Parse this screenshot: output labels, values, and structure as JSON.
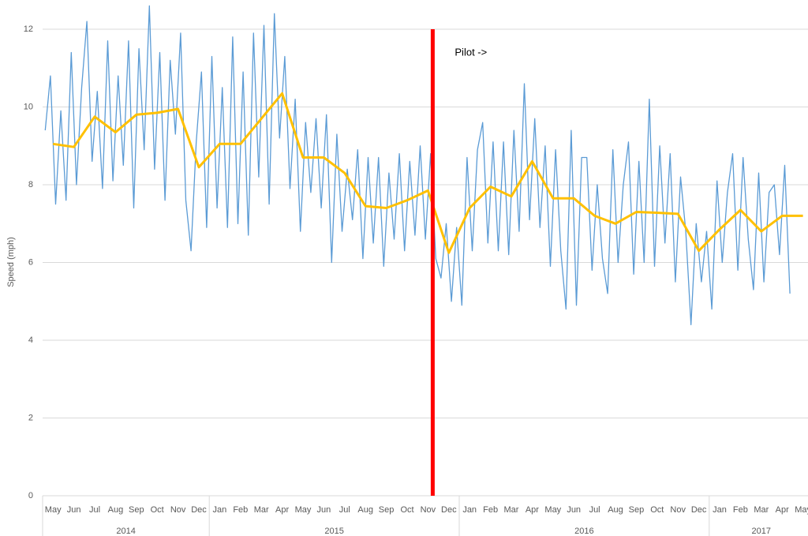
{
  "chart_data": {
    "type": "line",
    "y_label": "Speed (mph)",
    "ylim": [
      0,
      12
    ],
    "yticks": [
      0,
      2,
      4,
      6,
      8,
      10,
      12
    ],
    "grid": true,
    "years": [
      {
        "label": "2014",
        "months": [
          "May",
          "Jun",
          "Jul",
          "Aug",
          "Sep",
          "Oct",
          "Nov",
          "Dec"
        ]
      },
      {
        "label": "2015",
        "months": [
          "Jan",
          "Feb",
          "Mar",
          "Apr",
          "May",
          "Jun",
          "Jul",
          "Aug",
          "Sep",
          "Oct",
          "Nov",
          "Dec"
        ]
      },
      {
        "label": "2016",
        "months": [
          "Jan",
          "Feb",
          "Mar",
          "Apr",
          "May",
          "Jun",
          "Jul",
          "Aug",
          "Sep",
          "Oct",
          "Nov",
          "Dec"
        ]
      },
      {
        "label": "2017",
        "months": [
          "Jan",
          "Feb",
          "Mar",
          "Apr",
          "May"
        ]
      }
    ],
    "series": [
      {
        "color": "#5b9bd5",
        "values_by_month": [
          [
            9.4,
            10.8,
            7.5,
            9.9
          ],
          [
            7.6,
            11.4,
            8.0,
            10.5
          ],
          [
            12.2,
            8.6,
            10.4,
            7.9
          ],
          [
            11.7,
            8.1,
            10.8,
            8.5
          ],
          [
            11.7,
            7.4,
            11.5,
            8.9
          ],
          [
            12.6,
            8.4,
            11.4,
            7.6
          ],
          [
            11.2,
            9.3,
            11.9,
            7.6
          ],
          [
            6.3,
            9.1,
            10.9,
            6.9
          ],
          [
            11.3,
            7.4,
            10.5,
            6.9
          ],
          [
            11.8,
            7.0,
            10.9,
            6.7
          ],
          [
            11.9,
            8.2,
            12.1,
            7.5
          ],
          [
            12.4,
            9.2,
            11.3,
            7.9
          ],
          [
            10.2,
            6.8,
            9.6,
            7.8
          ],
          [
            9.7,
            7.4,
            9.8,
            6.0
          ],
          [
            9.3,
            6.8,
            8.4,
            7.1
          ],
          [
            8.9,
            6.1,
            8.7,
            6.5
          ],
          [
            8.7,
            5.9,
            8.3,
            6.6
          ],
          [
            8.8,
            6.3,
            8.6,
            6.7
          ],
          [
            9.0,
            6.6,
            8.8,
            6.1
          ],
          [
            5.6,
            7.0,
            5.0,
            6.9
          ],
          [
            4.9,
            8.7,
            6.3,
            8.9
          ],
          [
            9.6,
            6.5,
            9.1,
            6.3
          ],
          [
            9.1,
            6.2,
            9.4,
            6.8
          ],
          [
            10.6,
            7.1,
            9.7,
            6.9
          ],
          [
            9.0,
            5.9,
            8.9,
            6.3
          ],
          [
            4.8,
            9.4,
            4.9,
            8.7
          ],
          [
            8.7,
            5.8,
            8.0,
            6.1
          ],
          [
            5.2,
            8.9,
            6.0,
            8.0
          ],
          [
            9.1,
            5.7,
            8.6,
            6.0
          ],
          [
            10.2,
            5.9,
            9.0,
            6.5
          ],
          [
            8.8,
            5.5,
            8.2,
            6.8
          ],
          [
            4.4,
            7.0,
            5.5,
            6.8
          ],
          [
            4.8,
            8.1,
            6.0,
            7.8
          ],
          [
            8.8,
            5.8,
            8.7,
            6.6
          ],
          [
            5.3,
            8.3,
            5.5,
            7.8
          ],
          [
            8.0,
            6.2,
            8.5,
            5.2
          ],
          []
        ]
      },
      {
        "color": "#ffc000",
        "values": [
          9.05,
          8.97,
          9.75,
          9.35,
          9.8,
          9.85,
          9.95,
          8.45,
          9.05,
          9.05,
          9.7,
          10.35,
          8.7,
          8.7,
          8.3,
          7.45,
          7.4,
          7.6,
          7.85,
          6.25,
          7.4,
          7.95,
          7.7,
          8.6,
          7.65,
          7.65,
          7.2,
          7.0,
          7.3,
          7.28,
          7.25,
          6.3,
          6.85,
          7.35,
          6.8,
          7.2,
          7.2
        ]
      }
    ],
    "annotation": {
      "text": "Pilot ->",
      "color": "#ff0000",
      "year": "2015",
      "month": "Nov"
    }
  }
}
